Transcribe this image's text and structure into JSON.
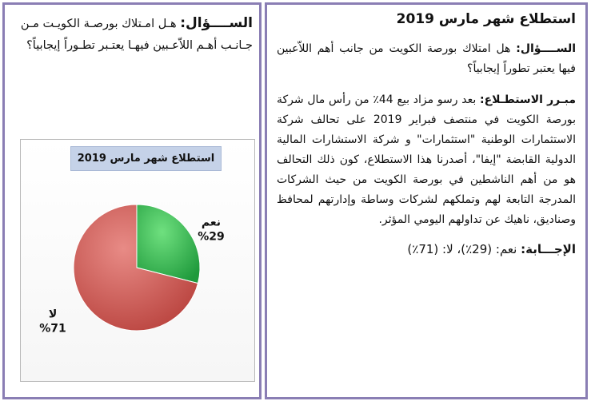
{
  "left": {
    "question_label": "الســــؤال:",
    "question_text": "هـل امـتلاك بورصـة الكويـت مـن جـانـب أهـم اللاّعـبين فيهـا يعتـبر تطـوراً إيجابياً؟",
    "chart_title": "استطلاع شهر مارس 2019"
  },
  "chart_data": {
    "type": "pie",
    "title": "استطلاع شهر مارس 2019",
    "slices": [
      {
        "label": "نعم",
        "value": 29,
        "value_label": "%29",
        "color": "#2db24a"
      },
      {
        "label": "لا",
        "value": 71,
        "value_label": "%71",
        "color": "#cc5a55"
      }
    ]
  },
  "right": {
    "title": "استطلاع شهر مارس 2019",
    "question_label": "الســــؤال:",
    "question_text": "هل امتلاك بورصة الكويت من جانب أهم اللاّعبين فيها يعتبر تطوراً إيجابياً؟",
    "justification_label": "مبـرر الاستطـلاع:",
    "justification_text": "بعد رسو مزاد بيع 44٪ من رأس مال شركة بورصة الكويت في منتصف فبراير 2019 على تحالف شركة الاستثمارات الوطنية \"استثمارات\" و شركة الاستشارات المالية الدولية القابضة \"إيفا\"، أصدرنا هذا الاستطلاع، كون ذلك التحالف هو من أهم الناشطين في بورصة الكويت من حيث الشركات المدرجة التابعة لهم وتملكهم لشركات وساطة وإدارتهم لمحافظ وصناديق، ناهيك عن تداولهم اليومي المؤثر.",
    "answer_label": "الإجـــابة:",
    "answer_text": "نعم: (29٪)، لا: (71٪)"
  }
}
